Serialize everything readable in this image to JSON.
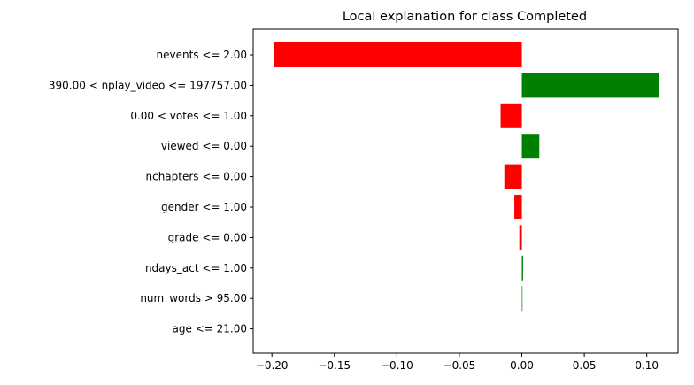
{
  "chart_data": {
    "type": "bar",
    "orientation": "horizontal",
    "title": "Local explanation for class Completed",
    "xlabel": "",
    "ylabel": "",
    "xlim": [
      -0.215,
      0.125
    ],
    "xticks": [
      -0.2,
      -0.15,
      -0.1,
      -0.05,
      0.0,
      0.05,
      0.1
    ],
    "xtick_labels": [
      "−0.20",
      "−0.15",
      "−0.10",
      "−0.05",
      "0.00",
      "0.05",
      "0.10"
    ],
    "grid": false,
    "legend": "none",
    "colors": {
      "positive": "#008000",
      "negative": "#ff0000"
    },
    "categories": [
      "nevents <= 2.00",
      "390.00 < nplay_video <= 197757.00",
      "0.00 < votes <= 1.00",
      "viewed <= 0.00",
      "nchapters <= 0.00",
      "gender <= 1.00",
      "grade <= 0.00",
      "ndays_act <= 1.00",
      "num_words > 95.00",
      "age <= 21.00"
    ],
    "values": [
      -0.198,
      0.11,
      -0.017,
      0.014,
      -0.014,
      -0.006,
      -0.002,
      0.001,
      0.0005,
      0.0
    ]
  }
}
